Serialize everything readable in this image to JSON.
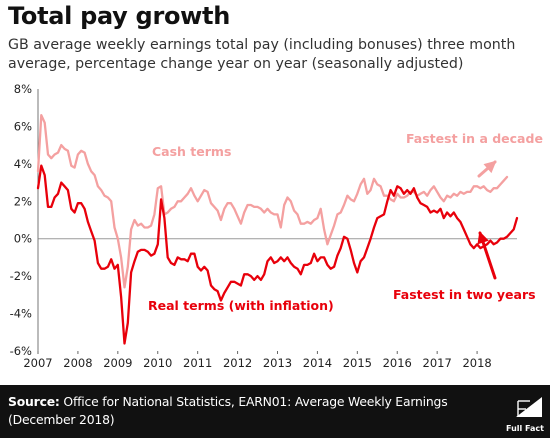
{
  "title": "Total pay growth",
  "subtitle": "GB average weekly earnings total pay (including bonuses) three month average, percentage change year on year (seasonally adjusted)",
  "source": {
    "label": "Source:",
    "text": " Office for National Statistics, EARN01: Average Weekly Earnings (December 2018)"
  },
  "logo": {
    "text": "Full Fact"
  },
  "colors": {
    "cash": "#f4a0a0",
    "real": "#e8000b",
    "annotation_real": "#e8000b",
    "zero_line": "#9a9a9a",
    "footer_bg": "#111111"
  },
  "chart_data": {
    "type": "line",
    "title": "Total pay growth",
    "xlabel": "",
    "ylabel": "",
    "xlim": [
      2007.0,
      2019.0
    ],
    "ylim": [
      -6,
      8
    ],
    "x_ticks": [
      "2007",
      "2008",
      "2009",
      "2010",
      "2011",
      "2012",
      "2013",
      "2014",
      "2015",
      "2016",
      "2017",
      "2018"
    ],
    "y_ticks": [
      "8%",
      "6%",
      "4%",
      "2%",
      "0%",
      "-2%",
      "-4%",
      "-6%"
    ],
    "y_tick_values": [
      8,
      6,
      4,
      2,
      0,
      -2,
      -4,
      -6
    ],
    "grid": false,
    "series": [
      {
        "name": "Cash terms",
        "color": "#f4a0a0",
        "points": [
          [
            2007.0,
            3.6
          ],
          [
            2007.083,
            6.6
          ],
          [
            2007.167,
            6.2
          ],
          [
            2007.25,
            4.5
          ],
          [
            2007.333,
            4.3
          ],
          [
            2007.417,
            4.5
          ],
          [
            2007.5,
            4.6
          ],
          [
            2007.583,
            5.0
          ],
          [
            2007.667,
            4.8
          ],
          [
            2007.75,
            4.7
          ],
          [
            2007.833,
            3.9
          ],
          [
            2007.917,
            3.8
          ],
          [
            2008.0,
            4.5
          ],
          [
            2008.083,
            4.7
          ],
          [
            2008.167,
            4.6
          ],
          [
            2008.25,
            4.0
          ],
          [
            2008.333,
            3.6
          ],
          [
            2008.417,
            3.4
          ],
          [
            2008.5,
            2.8
          ],
          [
            2008.583,
            2.6
          ],
          [
            2008.667,
            2.3
          ],
          [
            2008.75,
            2.2
          ],
          [
            2008.833,
            2.0
          ],
          [
            2008.917,
            0.6
          ],
          [
            2009.0,
            0.0
          ],
          [
            2009.083,
            -1.0
          ],
          [
            2009.167,
            -2.6
          ],
          [
            2009.25,
            -1.5
          ],
          [
            2009.333,
            0.5
          ],
          [
            2009.417,
            1.0
          ],
          [
            2009.5,
            0.7
          ],
          [
            2009.583,
            0.8
          ],
          [
            2009.667,
            0.6
          ],
          [
            2009.75,
            0.6
          ],
          [
            2009.833,
            0.7
          ],
          [
            2009.917,
            1.3
          ],
          [
            2010.0,
            2.7
          ],
          [
            2010.083,
            2.8
          ],
          [
            2010.167,
            1.3
          ],
          [
            2010.25,
            1.4
          ],
          [
            2010.333,
            1.6
          ],
          [
            2010.417,
            1.7
          ],
          [
            2010.5,
            2.0
          ],
          [
            2010.583,
            2.0
          ],
          [
            2010.667,
            2.2
          ],
          [
            2010.75,
            2.4
          ],
          [
            2010.833,
            2.7
          ],
          [
            2010.917,
            2.3
          ],
          [
            2011.0,
            2.0
          ],
          [
            2011.083,
            2.3
          ],
          [
            2011.167,
            2.6
          ],
          [
            2011.25,
            2.5
          ],
          [
            2011.333,
            1.9
          ],
          [
            2011.417,
            1.7
          ],
          [
            2011.5,
            1.5
          ],
          [
            2011.583,
            1.0
          ],
          [
            2011.667,
            1.6
          ],
          [
            2011.75,
            1.9
          ],
          [
            2011.833,
            1.9
          ],
          [
            2011.917,
            1.6
          ],
          [
            2012.0,
            1.2
          ],
          [
            2012.083,
            0.8
          ],
          [
            2012.167,
            1.4
          ],
          [
            2012.25,
            1.8
          ],
          [
            2012.333,
            1.8
          ],
          [
            2012.417,
            1.7
          ],
          [
            2012.5,
            1.7
          ],
          [
            2012.583,
            1.6
          ],
          [
            2012.667,
            1.4
          ],
          [
            2012.75,
            1.6
          ],
          [
            2012.833,
            1.4
          ],
          [
            2012.917,
            1.3
          ],
          [
            2013.0,
            1.3
          ],
          [
            2013.083,
            0.6
          ],
          [
            2013.167,
            1.8
          ],
          [
            2013.25,
            2.2
          ],
          [
            2013.333,
            2.0
          ],
          [
            2013.417,
            1.5
          ],
          [
            2013.5,
            1.3
          ],
          [
            2013.583,
            0.8
          ],
          [
            2013.667,
            0.8
          ],
          [
            2013.75,
            0.9
          ],
          [
            2013.833,
            0.8
          ],
          [
            2013.917,
            1.0
          ],
          [
            2014.0,
            1.1
          ],
          [
            2014.083,
            1.6
          ],
          [
            2014.167,
            0.5
          ],
          [
            2014.25,
            -0.3
          ],
          [
            2014.333,
            0.2
          ],
          [
            2014.417,
            0.7
          ],
          [
            2014.5,
            1.3
          ],
          [
            2014.583,
            1.4
          ],
          [
            2014.667,
            1.8
          ],
          [
            2014.75,
            2.3
          ],
          [
            2014.833,
            2.1
          ],
          [
            2014.917,
            2.0
          ],
          [
            2015.0,
            2.4
          ],
          [
            2015.083,
            2.9
          ],
          [
            2015.167,
            3.2
          ],
          [
            2015.25,
            2.4
          ],
          [
            2015.333,
            2.6
          ],
          [
            2015.417,
            3.2
          ],
          [
            2015.5,
            2.9
          ],
          [
            2015.583,
            2.8
          ],
          [
            2015.667,
            2.3
          ],
          [
            2015.75,
            2.3
          ],
          [
            2015.833,
            2.1
          ],
          [
            2015.917,
            2.0
          ],
          [
            2016.0,
            2.4
          ],
          [
            2016.083,
            2.2
          ],
          [
            2016.167,
            2.2
          ],
          [
            2016.25,
            2.3
          ],
          [
            2016.333,
            2.5
          ],
          [
            2016.417,
            2.5
          ],
          [
            2016.5,
            2.3
          ],
          [
            2016.583,
            2.4
          ],
          [
            2016.667,
            2.5
          ],
          [
            2016.75,
            2.3
          ],
          [
            2016.833,
            2.6
          ],
          [
            2016.917,
            2.8
          ],
          [
            2017.0,
            2.5
          ],
          [
            2017.083,
            2.2
          ],
          [
            2017.167,
            2.0
          ],
          [
            2017.25,
            2.3
          ],
          [
            2017.333,
            2.2
          ],
          [
            2017.417,
            2.4
          ],
          [
            2017.5,
            2.3
          ],
          [
            2017.583,
            2.5
          ],
          [
            2017.667,
            2.4
          ],
          [
            2017.75,
            2.5
          ],
          [
            2017.833,
            2.5
          ],
          [
            2017.917,
            2.8
          ],
          [
            2018.0,
            2.8
          ],
          [
            2018.083,
            2.7
          ],
          [
            2018.167,
            2.8
          ],
          [
            2018.25,
            2.6
          ],
          [
            2018.333,
            2.5
          ],
          [
            2018.417,
            2.7
          ],
          [
            2018.5,
            2.7
          ],
          [
            2018.583,
            2.9
          ],
          [
            2018.667,
            3.1
          ],
          [
            2018.75,
            3.3
          ]
        ]
      },
      {
        "name": "Real terms (with inflation)",
        "color": "#e8000b",
        "points": [
          [
            2007.0,
            2.7
          ],
          [
            2007.083,
            3.9
          ],
          [
            2007.167,
            3.4
          ],
          [
            2007.25,
            1.7
          ],
          [
            2007.333,
            1.7
          ],
          [
            2007.417,
            2.2
          ],
          [
            2007.5,
            2.4
          ],
          [
            2007.583,
            3.0
          ],
          [
            2007.667,
            2.8
          ],
          [
            2007.75,
            2.6
          ],
          [
            2007.833,
            1.6
          ],
          [
            2007.917,
            1.4
          ],
          [
            2008.0,
            1.9
          ],
          [
            2008.083,
            1.9
          ],
          [
            2008.167,
            1.6
          ],
          [
            2008.25,
            0.9
          ],
          [
            2008.333,
            0.4
          ],
          [
            2008.417,
            -0.1
          ],
          [
            2008.5,
            -1.3
          ],
          [
            2008.583,
            -1.6
          ],
          [
            2008.667,
            -1.6
          ],
          [
            2008.75,
            -1.5
          ],
          [
            2008.833,
            -1.1
          ],
          [
            2008.917,
            -1.6
          ],
          [
            2009.0,
            -1.4
          ],
          [
            2009.083,
            -3.1
          ],
          [
            2009.167,
            -5.6
          ],
          [
            2009.25,
            -4.5
          ],
          [
            2009.333,
            -1.8
          ],
          [
            2009.417,
            -1.2
          ],
          [
            2009.5,
            -0.7
          ],
          [
            2009.583,
            -0.6
          ],
          [
            2009.667,
            -0.6
          ],
          [
            2009.75,
            -0.7
          ],
          [
            2009.833,
            -0.9
          ],
          [
            2009.917,
            -0.8
          ],
          [
            2010.0,
            -0.3
          ],
          [
            2010.083,
            2.1
          ],
          [
            2010.167,
            1.1
          ],
          [
            2010.25,
            -1.0
          ],
          [
            2010.333,
            -1.3
          ],
          [
            2010.417,
            -1.4
          ],
          [
            2010.5,
            -1.0
          ],
          [
            2010.583,
            -1.1
          ],
          [
            2010.667,
            -1.1
          ],
          [
            2010.75,
            -1.2
          ],
          [
            2010.833,
            -0.8
          ],
          [
            2010.917,
            -0.8
          ],
          [
            2011.0,
            -1.5
          ],
          [
            2011.083,
            -1.7
          ],
          [
            2011.167,
            -1.5
          ],
          [
            2011.25,
            -1.7
          ],
          [
            2011.333,
            -2.5
          ],
          [
            2011.417,
            -2.7
          ],
          [
            2011.5,
            -2.8
          ],
          [
            2011.583,
            -3.3
          ],
          [
            2011.667,
            -2.9
          ],
          [
            2011.75,
            -2.6
          ],
          [
            2011.833,
            -2.3
          ],
          [
            2011.917,
            -2.3
          ],
          [
            2012.0,
            -2.4
          ],
          [
            2012.083,
            -2.5
          ],
          [
            2012.167,
            -1.9
          ],
          [
            2012.25,
            -1.9
          ],
          [
            2012.333,
            -2.0
          ],
          [
            2012.417,
            -2.2
          ],
          [
            2012.5,
            -2.0
          ],
          [
            2012.583,
            -2.2
          ],
          [
            2012.667,
            -1.9
          ],
          [
            2012.75,
            -1.2
          ],
          [
            2012.833,
            -1.0
          ],
          [
            2012.917,
            -1.3
          ],
          [
            2013.0,
            -1.2
          ],
          [
            2013.083,
            -1.0
          ],
          [
            2013.167,
            -1.2
          ],
          [
            2013.25,
            -1.0
          ],
          [
            2013.333,
            -1.3
          ],
          [
            2013.417,
            -1.5
          ],
          [
            2013.5,
            -1.6
          ],
          [
            2013.583,
            -1.9
          ],
          [
            2013.667,
            -1.4
          ],
          [
            2013.75,
            -1.4
          ],
          [
            2013.833,
            -1.3
          ],
          [
            2013.917,
            -0.8
          ],
          [
            2014.0,
            -1.2
          ],
          [
            2014.083,
            -1.0
          ],
          [
            2014.167,
            -1.0
          ],
          [
            2014.25,
            -1.4
          ],
          [
            2014.333,
            -1.6
          ],
          [
            2014.417,
            -1.5
          ],
          [
            2014.5,
            -0.9
          ],
          [
            2014.583,
            -0.5
          ],
          [
            2014.667,
            0.1
          ],
          [
            2014.75,
            0.0
          ],
          [
            2014.833,
            -0.6
          ],
          [
            2014.917,
            -1.3
          ],
          [
            2015.0,
            -1.8
          ],
          [
            2015.083,
            -1.2
          ],
          [
            2015.167,
            -1.0
          ],
          [
            2015.25,
            -0.5
          ],
          [
            2015.333,
            0.0
          ],
          [
            2015.417,
            0.6
          ],
          [
            2015.5,
            1.1
          ],
          [
            2015.583,
            1.2
          ],
          [
            2015.667,
            1.3
          ],
          [
            2015.75,
            2.0
          ],
          [
            2015.833,
            2.6
          ],
          [
            2015.917,
            2.3
          ],
          [
            2016.0,
            2.8
          ],
          [
            2016.083,
            2.7
          ],
          [
            2016.167,
            2.4
          ],
          [
            2016.25,
            2.6
          ],
          [
            2016.333,
            2.4
          ],
          [
            2016.417,
            2.7
          ],
          [
            2016.5,
            2.2
          ],
          [
            2016.583,
            1.9
          ],
          [
            2016.667,
            1.8
          ],
          [
            2016.75,
            1.7
          ],
          [
            2016.833,
            1.4
          ],
          [
            2016.917,
            1.5
          ],
          [
            2017.0,
            1.4
          ],
          [
            2017.083,
            1.6
          ],
          [
            2017.167,
            1.1
          ],
          [
            2017.25,
            1.4
          ],
          [
            2017.333,
            1.2
          ],
          [
            2017.417,
            1.4
          ],
          [
            2017.5,
            1.1
          ],
          [
            2017.583,
            0.9
          ],
          [
            2017.667,
            0.5
          ],
          [
            2017.75,
            0.1
          ],
          [
            2017.833,
            -0.3
          ],
          [
            2017.917,
            -0.5
          ],
          [
            2018.0,
            -0.3
          ],
          [
            2018.083,
            -0.5
          ],
          [
            2018.167,
            -0.4
          ],
          [
            2018.25,
            -0.3
          ],
          [
            2018.333,
            -0.1
          ],
          [
            2018.417,
            -0.3
          ],
          [
            2018.5,
            -0.2
          ],
          [
            2018.583,
            0.0
          ],
          [
            2018.667,
            0.0
          ],
          [
            2018.75,
            0.1
          ],
          [
            2018.833,
            0.3
          ],
          [
            2018.917,
            0.5
          ],
          [
            2019.0,
            1.1
          ]
        ]
      }
    ],
    "annotations": [
      {
        "text": "Cash terms",
        "color": "#f4a0a0"
      },
      {
        "text": "Real terms (with inflation)",
        "color": "#e8000b"
      },
      {
        "text": "Fastest in a decade",
        "color": "#f4a0a0"
      },
      {
        "text": "Fastest in two years",
        "color": "#e8000b"
      }
    ]
  }
}
